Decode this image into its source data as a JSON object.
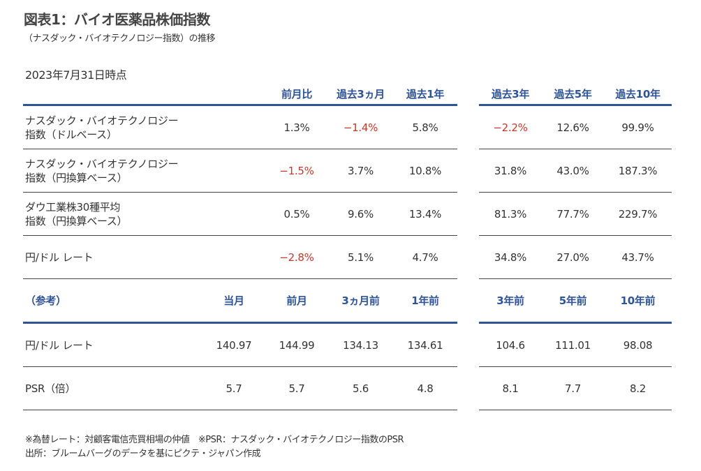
{
  "title": "図表1：バイオ医薬品株価指数",
  "subtitle": "（ナスダック・バイオテクノロジー指数）の推移",
  "as_of": "2023年7月31日時点",
  "colors": {
    "header": "#2f5496",
    "negative": "#c0392b"
  },
  "section1": {
    "headers": [
      "",
      "",
      "前月比",
      "過去3ヵ月",
      "過去1年",
      "過去3年",
      "過去5年",
      "過去10年"
    ],
    "rows": [
      {
        "label": "ナスダック・バイオテクノロジー\n指数（ドルベース）",
        "values": [
          "",
          "1.3%",
          "−1.4%",
          "5.8%",
          "−2.2%",
          "12.6%",
          "99.9%"
        ]
      },
      {
        "label": "ナスダック・バイオテクノロジー\n指数（円換算ベース）",
        "values": [
          "",
          "−1.5%",
          "3.7%",
          "10.8%",
          "31.8%",
          "43.0%",
          "187.3%"
        ]
      },
      {
        "label": "ダウ工業株30種平均\n指数（円換算ベース）",
        "values": [
          "",
          "0.5%",
          "9.6%",
          "13.4%",
          "81.3%",
          "77.7%",
          "229.7%"
        ]
      },
      {
        "label": "円/ドル レート",
        "values": [
          "",
          "−2.8%",
          "5.1%",
          "4.7%",
          "34.8%",
          "27.0%",
          "43.7%"
        ]
      }
    ]
  },
  "section2": {
    "headers": [
      "（参考）",
      "当月",
      "前月",
      "3ヵ月前",
      "1年前",
      "3年前",
      "5年前",
      "10年前"
    ],
    "rows": [
      {
        "label": "円/ドル レート",
        "values": [
          "140.97",
          "144.99",
          "134.13",
          "134.61",
          "104.6",
          "111.01",
          "98.08"
        ]
      },
      {
        "label": "PSR（倍）",
        "values": [
          "5.7",
          "5.7",
          "5.6",
          "4.8",
          "8.1",
          "7.7",
          "8.2"
        ]
      }
    ]
  },
  "notes": [
    "※為替レート：対顧客電信売買相場の仲値　※PSR：ナスダック・バイオテクノロジー指数のPSR",
    "出所：ブルームバーグのデータを基にピクテ・ジャパン作成"
  ]
}
